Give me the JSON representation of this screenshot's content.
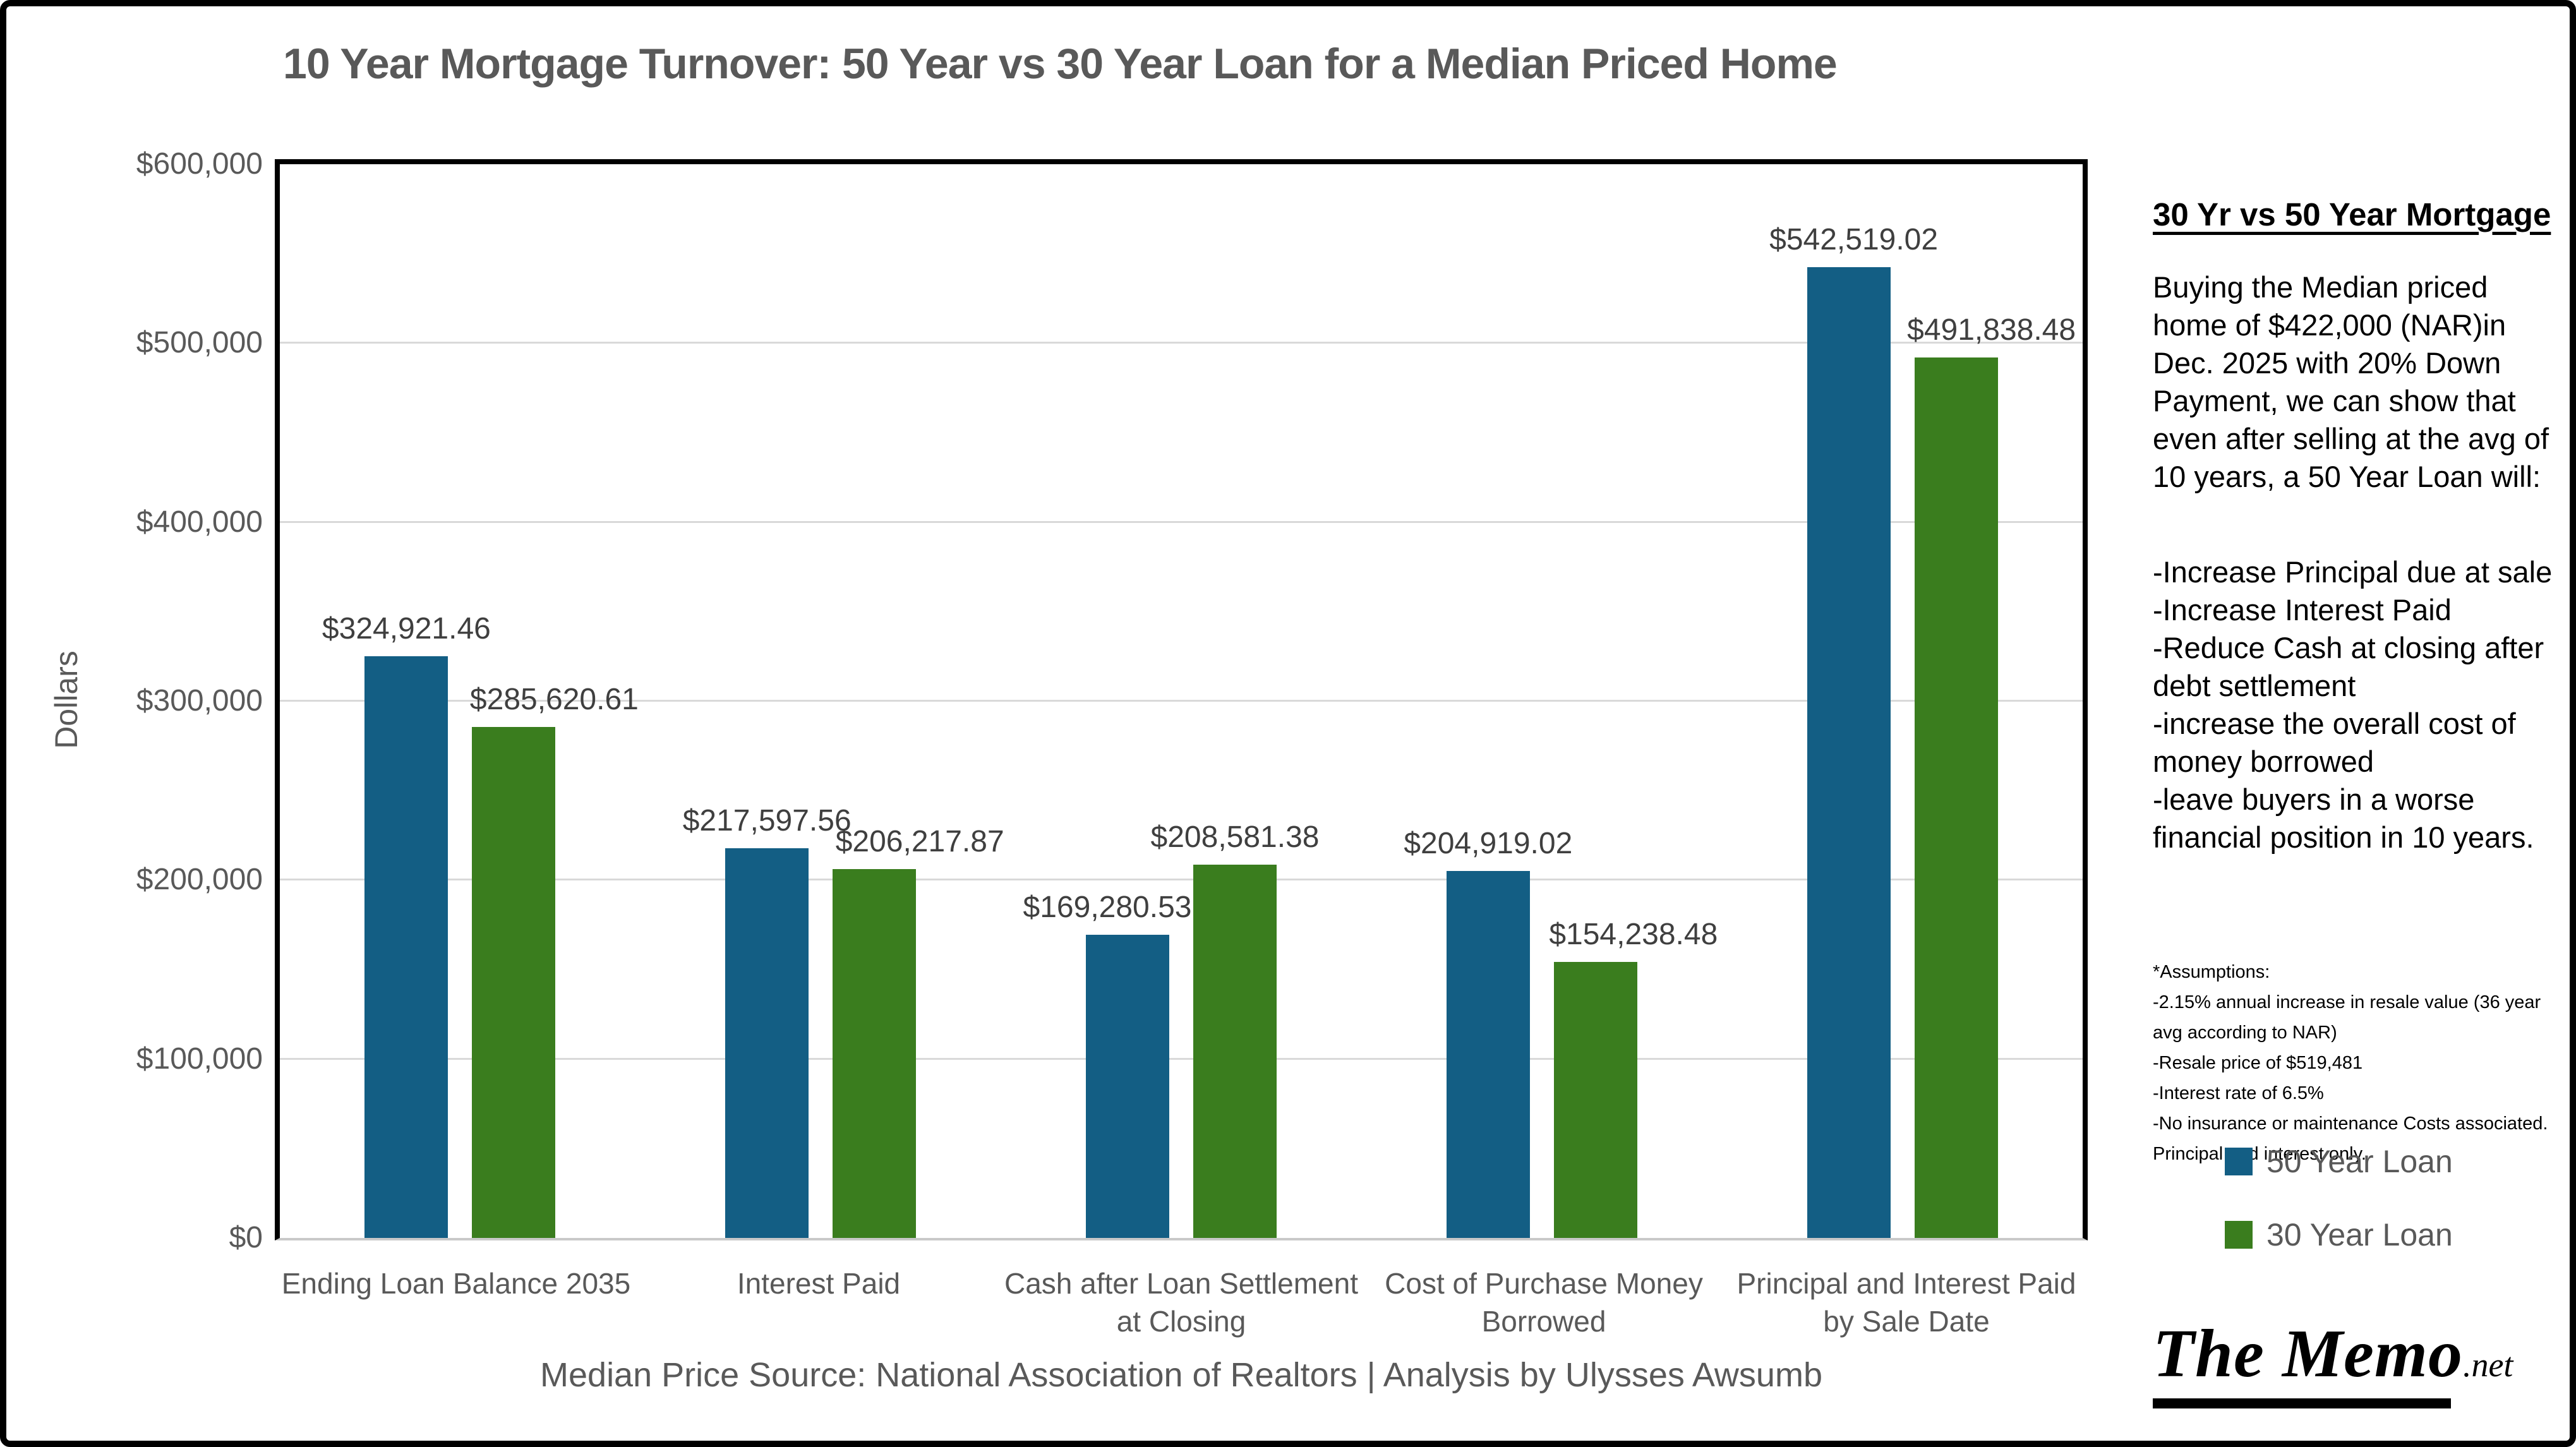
{
  "chart": {
    "title": "10 Year Mortgage Turnover: 50 Year vs 30 Year Loan for a Median Priced Home",
    "y_axis": {
      "label": "Dollars",
      "tick_labels": [
        "$600,000",
        "$500,000",
        "$400,000",
        "$300,000",
        "$200,000",
        "$100,000",
        "$0"
      ]
    },
    "source_line": "Median Price Source: National Association of Realtors | Analysis by Ulysses Awsumb"
  },
  "chart_data": {
    "type": "bar",
    "title": "10 Year Mortgage Turnover: 50 Year vs 30 Year Loan for a Median Priced Home",
    "categories": [
      "Ending Loan Balance 2035",
      "Interest Paid",
      "Cash after Loan Settlement at Closing",
      "Cost of Purchase Money Borrowed",
      "Principal and Interest Paid by Sale Date"
    ],
    "series": [
      {
        "name": "50 Year Loan",
        "color": "#135E84",
        "values": [
          324921.46,
          217597.56,
          169280.53,
          204919.02,
          542519.02
        ],
        "value_labels": [
          "$324,921.46",
          "$217,597.56",
          "$169,280.53",
          "$204,919.02",
          "$542,519.02"
        ]
      },
      {
        "name": "30 Year Loan",
        "color": "#3A7D1E",
        "values": [
          285620.61,
          206217.87,
          208581.38,
          154238.48,
          491838.48
        ],
        "value_labels": [
          "$285,620.61",
          "$206,217.87",
          "$208,581.38",
          "$154,238.48",
          "$491,838.48"
        ]
      }
    ],
    "xlabel": "",
    "ylabel": "Dollars",
    "ylim": [
      0,
      600000
    ],
    "ytick_step": 100000,
    "grid": "horizontal",
    "legend_position": "right-panel"
  },
  "layout_hints": {
    "category_lines": [
      [
        "Ending Loan Balance 2035"
      ],
      [
        "Interest Paid"
      ],
      [
        "Cash after Loan Settlement",
        "at Closing"
      ],
      [
        "Cost of Purchase Money",
        "Borrowed"
      ],
      [
        "Principal and Interest Paid",
        "by Sale Date"
      ]
    ],
    "label_dx": [
      [
        0,
        0,
        -32,
        0,
        8
      ],
      [
        64,
        72,
        0,
        60,
        56
      ]
    ]
  },
  "sidebar": {
    "heading": "30 Yr vs 50 Year Mortgage",
    "intro": "Buying the Median priced home of $422,000 (NAR)in Dec. 2025 with 20% Down Payment, we can show that even after selling at the avg of 10 years, a 50 Year Loan will:",
    "bullets": [
      "-Increase Principal due at sale",
      "-Increase Interest Paid",
      "-Reduce Cash at closing after debt settlement",
      "-increase the overall cost of money borrowed",
      "-leave buyers in a worse financial position in 10 years."
    ],
    "assumptions_title": "*Assumptions:",
    "assumptions": [
      "-2.15% annual increase in resale value (36 year avg according to NAR)",
      "-Resale price of $519,481",
      "-Interest rate of 6.5%",
      "-No insurance or maintenance Costs associated. Principal and interest only."
    ],
    "legend": [
      {
        "label": "50 Year Loan",
        "color": "#135E84"
      },
      {
        "label": "30 Year Loan",
        "color": "#3A7D1E"
      }
    ],
    "logo": {
      "main": "The Memo",
      "suffix": ".net"
    }
  }
}
